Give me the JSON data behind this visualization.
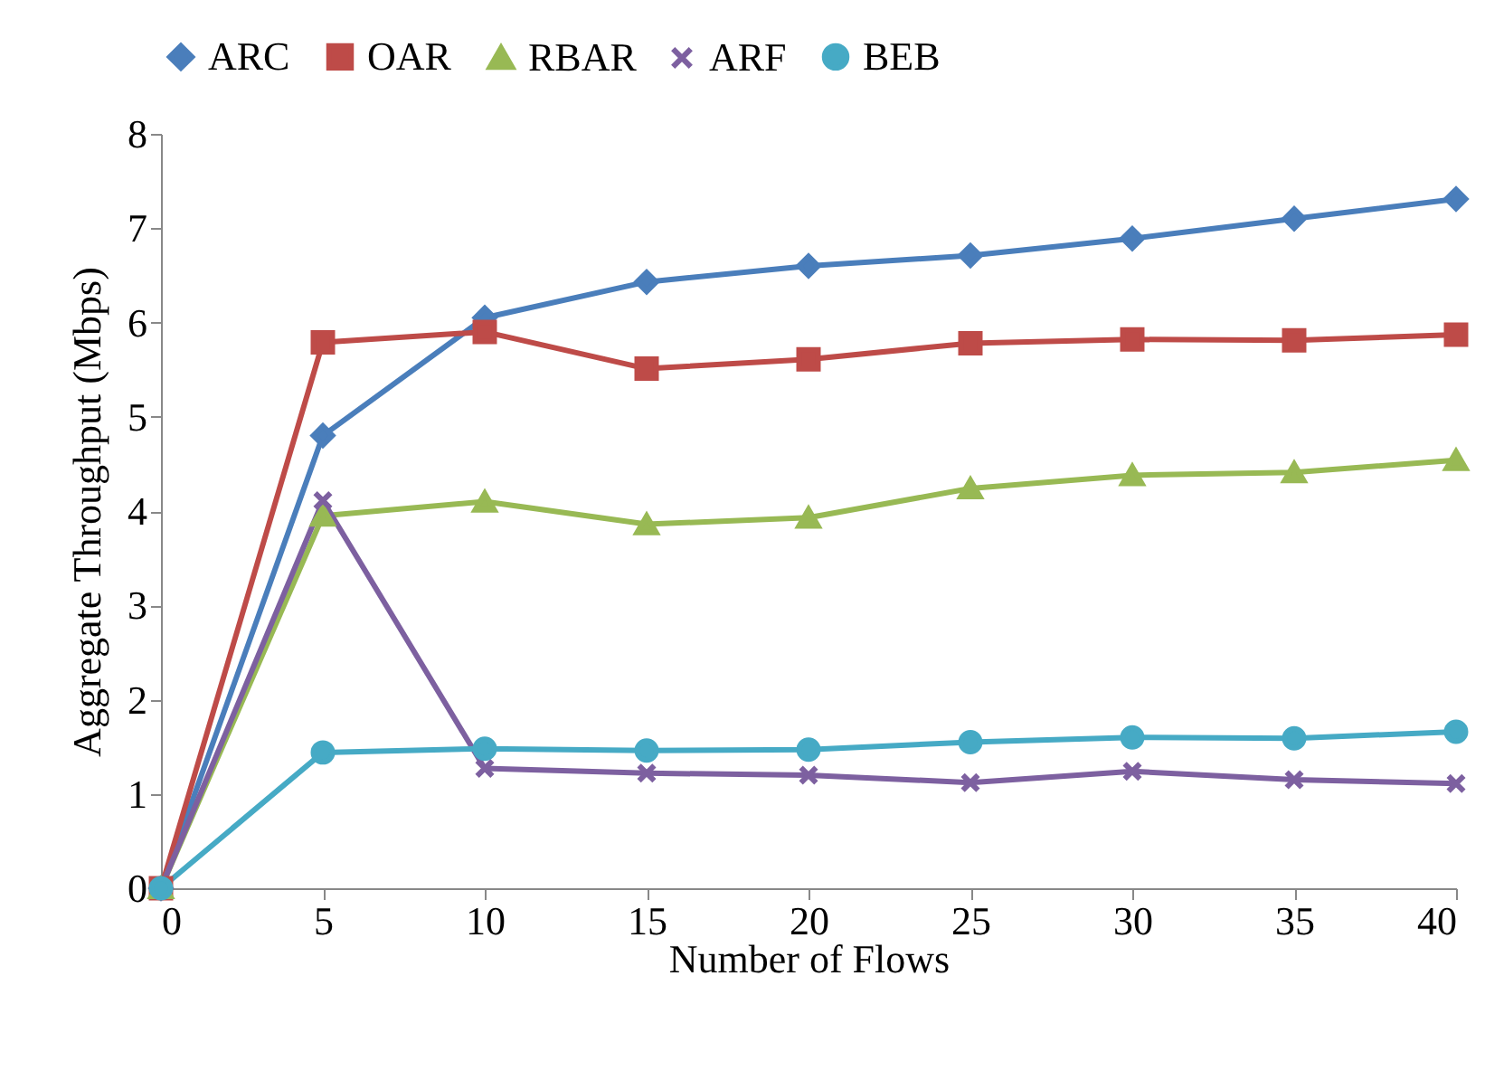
{
  "chart_data": {
    "type": "line",
    "xlabel": "Number of Flows",
    "ylabel": "Aggregate Throughput (Mbps)",
    "x": [
      0,
      5,
      10,
      15,
      20,
      25,
      30,
      35,
      40
    ],
    "series": [
      {
        "name": "ARC",
        "color": "#4a7ebb",
        "marker": "diamond",
        "values": [
          0,
          4.8,
          6.05,
          6.43,
          6.6,
          6.71,
          6.89,
          7.1,
          7.31
        ]
      },
      {
        "name": "OAR",
        "color": "#be4b48",
        "marker": "square",
        "values": [
          0,
          5.79,
          5.9,
          5.51,
          5.61,
          5.78,
          5.82,
          5.81,
          5.87
        ]
      },
      {
        "name": "RBAR",
        "color": "#98b954",
        "marker": "triangle",
        "values": [
          0,
          3.95,
          4.1,
          3.86,
          3.93,
          4.24,
          4.38,
          4.41,
          4.54
        ]
      },
      {
        "name": "ARF",
        "color": "#7d60a0",
        "marker": "cross",
        "values": [
          0,
          4.11,
          1.27,
          1.22,
          1.2,
          1.12,
          1.24,
          1.15,
          1.11
        ]
      },
      {
        "name": "BEB",
        "color": "#46aac5",
        "marker": "circle",
        "values": [
          0,
          1.44,
          1.48,
          1.46,
          1.47,
          1.55,
          1.6,
          1.59,
          1.66
        ]
      }
    ],
    "xlim": [
      0,
      40
    ],
    "xticks": [
      0,
      5,
      10,
      15,
      20,
      25,
      30,
      35,
      40
    ],
    "ylim": [
      0,
      8
    ],
    "yticks": [
      0,
      1,
      2,
      3,
      4,
      5,
      6,
      7,
      8
    ],
    "grid": false,
    "legend": "top",
    "line_style": "solid"
  }
}
